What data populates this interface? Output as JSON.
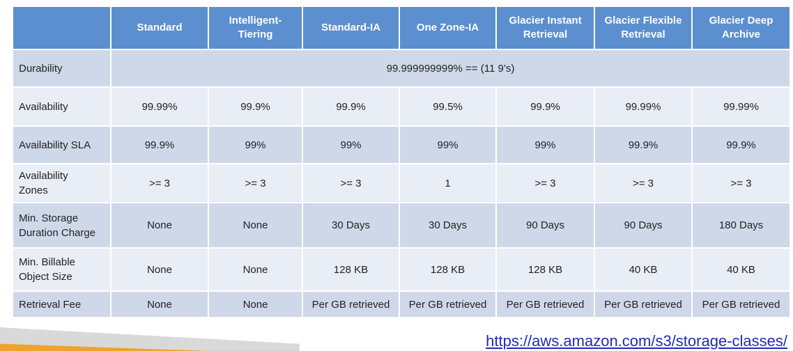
{
  "table": {
    "corner": "",
    "columns": [
      "Standard",
      "Intelligent-\nTiering",
      "Standard-IA",
      "One Zone-IA",
      "Glacier Instant\nRetrieval",
      "Glacier Flexible\nRetrieval",
      "Glacier Deep\nArchive"
    ],
    "durability": {
      "label": "Durability",
      "value": "99.999999999% == (11 9’s)"
    },
    "rows": [
      {
        "label": "Availability",
        "values": [
          "99.99%",
          "99.9%",
          "99.9%",
          "99.5%",
          "99.9%",
          "99.99%",
          "99.99%"
        ]
      },
      {
        "label": "Availability SLA",
        "values": [
          "99.9%",
          "99%",
          "99%",
          "99%",
          "99%",
          "99.9%",
          "99.9%"
        ]
      },
      {
        "label": "Availability\nZones",
        "values": [
          ">= 3",
          ">= 3",
          ">= 3",
          "1",
          ">= 3",
          ">= 3",
          ">= 3"
        ]
      },
      {
        "label": "Min. Storage\nDuration Charge",
        "values": [
          "None",
          "None",
          "30 Days",
          "30 Days",
          "90 Days",
          "90 Days",
          "180 Days"
        ]
      },
      {
        "label": "Min. Billable\nObject Size",
        "values": [
          "None",
          "None",
          "128 KB",
          "128 KB",
          "128 KB",
          "40 KB",
          "40 KB"
        ]
      },
      {
        "label": "Retrieval Fee",
        "values": [
          "None",
          "None",
          "Per GB retrieved",
          "Per GB retrieved",
          "Per GB retrieved",
          "Per GB retrieved",
          "Per GB retrieved"
        ]
      }
    ]
  },
  "source_link": "https://aws.amazon.com/s3/storage-classes/",
  "colors": {
    "header": "#5b8fd0",
    "row_dark": "#cfd8e9",
    "row_light": "#e9edf5",
    "link": "#1f2bb8",
    "accent_orange": "#f0a22e"
  }
}
